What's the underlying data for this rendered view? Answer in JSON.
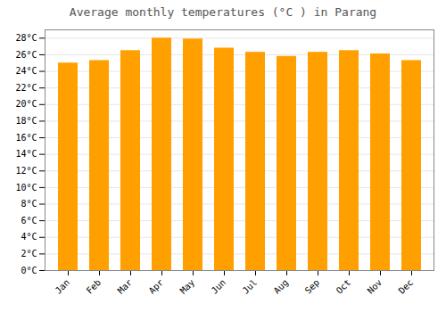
{
  "chart_data": {
    "type": "bar",
    "title": "Average monthly temperatures (°C ) in Parang",
    "categories": [
      "Jan",
      "Feb",
      "Mar",
      "Apr",
      "May",
      "Jun",
      "Jul",
      "Aug",
      "Sep",
      "Oct",
      "Nov",
      "Dec"
    ],
    "values": [
      25.0,
      25.3,
      26.5,
      28.0,
      27.9,
      26.8,
      26.3,
      25.8,
      26.3,
      26.5,
      26.1,
      25.3
    ],
    "color": "#FFA000",
    "ylim": [
      0,
      29
    ],
    "yticks": [
      {
        "value": 0,
        "label": "0°C"
      },
      {
        "value": 2,
        "label": "2°C"
      },
      {
        "value": 4,
        "label": "4°C"
      },
      {
        "value": 6,
        "label": "6°C"
      },
      {
        "value": 8,
        "label": "8°C"
      },
      {
        "value": 10,
        "label": "10°C"
      },
      {
        "value": 12,
        "label": "12°C"
      },
      {
        "value": 14,
        "label": "14°C"
      },
      {
        "value": 16,
        "label": "16°C"
      },
      {
        "value": 18,
        "label": "18°C"
      },
      {
        "value": 20,
        "label": "20°C"
      },
      {
        "value": 22,
        "label": "22°C"
      },
      {
        "value": 24,
        "label": "24°C"
      },
      {
        "value": 26,
        "label": "26°C"
      },
      {
        "value": 28,
        "label": "28°C"
      }
    ],
    "grid": true
  }
}
